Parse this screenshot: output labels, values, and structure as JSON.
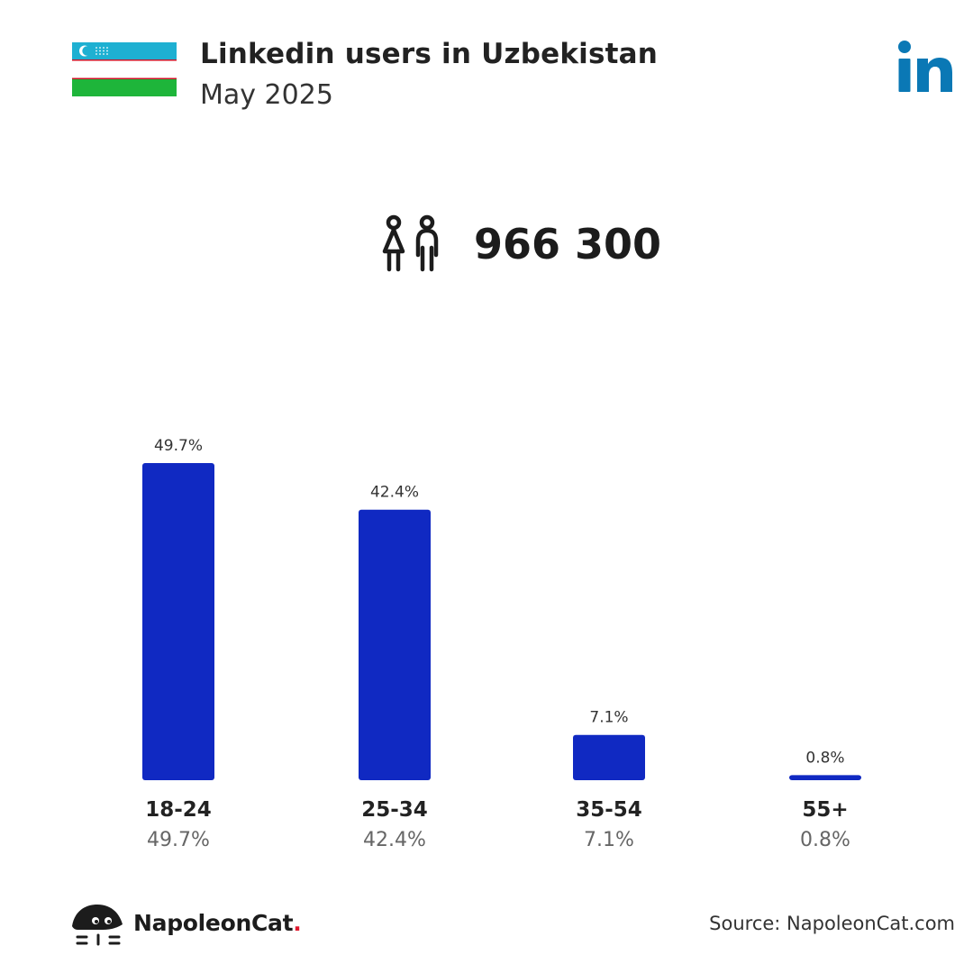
{
  "header": {
    "title": "Linkedin users in Uzbekistan",
    "subtitle": "May 2025"
  },
  "flag_colors": {
    "top": "#1eb0d2",
    "middle": "#ffffff",
    "bottom": "#1eb53a",
    "stripe": "#ce1126"
  },
  "total_users": "966 300",
  "icons": {
    "flag": "uzbekistan-flag-icon",
    "platform": "linkedin-icon",
    "users": "people-icon",
    "brand": "napoleoncat-icon"
  },
  "bar_color": "#1029c2",
  "linkedin_color": "#0a78b5",
  "chart_data": {
    "type": "bar",
    "categories": [
      "18-24",
      "25-34",
      "35-54",
      "55+"
    ],
    "values": [
      49.7,
      42.4,
      7.1,
      0.8
    ],
    "value_labels": [
      "49.7%",
      "42.4%",
      "7.1%",
      "0.8%"
    ],
    "title": "",
    "xlabel": "",
    "ylabel": "",
    "ylim": [
      0,
      49.7
    ],
    "grid": false
  },
  "footer": {
    "brand": "NapoleonCat",
    "brand_dot": ".",
    "source": "Source: NapoleonCat.com"
  }
}
